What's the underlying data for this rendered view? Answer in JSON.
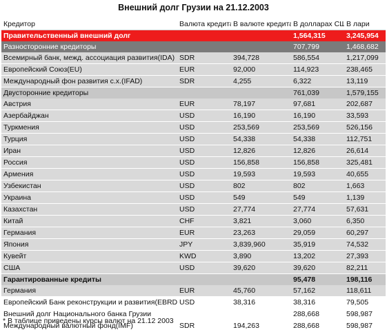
{
  "title": "Внешний долг Грузии на 21.12.2003",
  "columns": [
    "Кредитор",
    "Валюта кредита",
    "В валюте кредита",
    "В долларах США",
    "В лари"
  ],
  "rows": [
    {
      "style": "red",
      "cells": [
        "Правительственный внешний долг",
        "",
        "",
        "1,564,315",
        "3,245,954"
      ]
    },
    {
      "style": "dark",
      "cells": [
        "Разносторонние кредиторы",
        "",
        "",
        "707,799",
        "1,468,682"
      ]
    },
    {
      "style": "light",
      "cells": [
        "Всемирный банк, межд. ассоциация развития(IDA)",
        "SDR",
        "394,728",
        "586,554",
        "1,217,099"
      ]
    },
    {
      "style": "light",
      "cells": [
        "Европейский Союз(EU)",
        "EUR",
        "92,000",
        "114,923",
        "238,465"
      ]
    },
    {
      "style": "light",
      "cells": [
        "Международный фон развития с.х.(IFAD)",
        "SDR",
        "4,255",
        "6,322",
        "13,119"
      ]
    },
    {
      "style": "mid",
      "cells": [
        "Двусторонние кредиторы",
        "",
        "",
        "761,039",
        "1,579,155"
      ]
    },
    {
      "style": "light",
      "cells": [
        "Австрия",
        "EUR",
        "78,197",
        "97,681",
        "202,687"
      ]
    },
    {
      "style": "light",
      "cells": [
        "Азербайджан",
        "USD",
        "16,190",
        "16,190",
        "33,593"
      ]
    },
    {
      "style": "light",
      "cells": [
        "Туркмения",
        "USD",
        "253,569",
        "253,569",
        "526,156"
      ]
    },
    {
      "style": "light",
      "cells": [
        "Турция",
        "USD",
        "54,338",
        "54,338",
        "112,751"
      ]
    },
    {
      "style": "light",
      "cells": [
        "Иран",
        "USD",
        "12,826",
        "12,826",
        "26,614"
      ]
    },
    {
      "style": "light",
      "cells": [
        "Россия",
        "USD",
        "156,858",
        "156,858",
        "325,481"
      ]
    },
    {
      "style": "light",
      "cells": [
        "Армения",
        "USD",
        "19,593",
        "19,593",
        "40,655"
      ]
    },
    {
      "style": "light",
      "cells": [
        "Узбекистан",
        "USD",
        "802",
        "802",
        "1,663"
      ]
    },
    {
      "style": "light",
      "cells": [
        "Украина",
        "USD",
        "549",
        "549",
        "1,139"
      ]
    },
    {
      "style": "light",
      "cells": [
        "Казахстан",
        "USD",
        "27,774",
        "27,774",
        "57,631"
      ]
    },
    {
      "style": "light",
      "cells": [
        "Китай",
        "CHF",
        "3,821",
        "3,060",
        "6,350"
      ]
    },
    {
      "style": "light",
      "cells": [
        "Германия",
        "EUR",
        "23,263",
        "29,059",
        "60,297"
      ]
    },
    {
      "style": "light",
      "cells": [
        "Япония",
        "JPY",
        "3,839,960",
        "35,919",
        "74,532"
      ]
    },
    {
      "style": "light",
      "cells": [
        "Кувейт",
        "KWD",
        "3,890",
        "13,202",
        "27,393"
      ]
    },
    {
      "style": "light",
      "cells": [
        "США",
        "USD",
        "39,620",
        "39,620",
        "82,211"
      ]
    },
    {
      "style": "mid bold",
      "cells": [
        "Гарантированные кредиты",
        "",
        "",
        "95,478",
        "198,116"
      ]
    },
    {
      "style": "light",
      "cells": [
        "Германия",
        "EUR",
        "45,760",
        "57,162",
        "118,611"
      ]
    },
    {
      "style": "white",
      "cells": [
        "Европейский Банк реконструкции и развития(EBRD)",
        "USD",
        "38,316",
        "38,316",
        "79,505"
      ]
    },
    {
      "style": "white",
      "cells": [
        "Внешний долг Национального банка Грузии",
        "",
        "",
        "288,668",
        "598,987"
      ]
    },
    {
      "style": "white",
      "cells": [
        "Международный валютный фонд(IMF)",
        "SDR",
        "194,263",
        "288,668",
        "598,987"
      ]
    }
  ],
  "note": "* В таблице приведены курсы валют на 21.12 2003",
  "colors": {
    "header_red": "#ee1c1c",
    "section_dark": "#7b7b7b",
    "section_mid": "#c7c7c7",
    "row_light": "#d9d9d9"
  }
}
